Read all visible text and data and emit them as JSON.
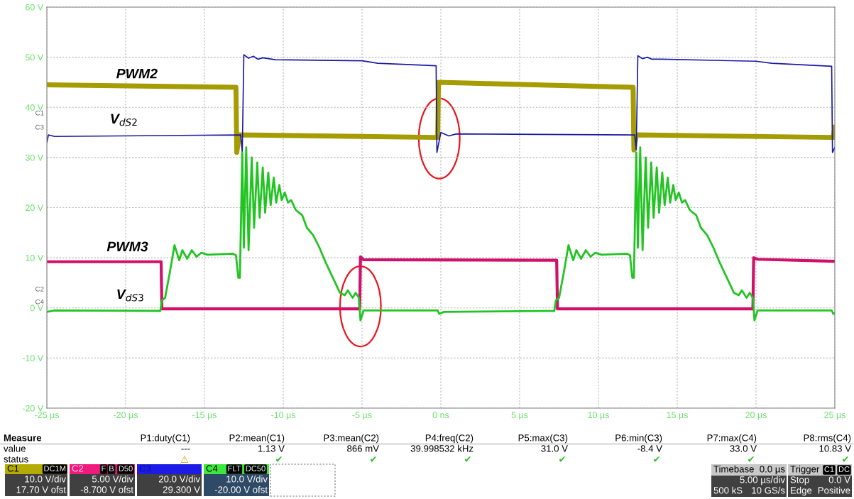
{
  "chart_data": {
    "type": "line",
    "xlim": [
      -25,
      25
    ],
    "xticks": [
      {
        "value": -25,
        "label": "-25 µs"
      },
      {
        "value": -20,
        "label": "-20 µs"
      },
      {
        "value": -15,
        "label": "-15 µs"
      },
      {
        "value": -10,
        "label": "-10 µs"
      },
      {
        "value": -5,
        "label": "-5 µs"
      },
      {
        "value": 0,
        "label": "0 ns"
      },
      {
        "value": 5,
        "label": "5 µs"
      },
      {
        "value": 10,
        "label": "10 µs"
      },
      {
        "value": 15,
        "label": "15 µs"
      },
      {
        "value": 20,
        "label": "20 µs"
      },
      {
        "value": 25,
        "label": "25 µs"
      }
    ],
    "ylim": [
      -20,
      60
    ],
    "yticks": [
      {
        "value": -20,
        "label": "-20 V"
      },
      {
        "value": -10,
        "label": "-10 V"
      },
      {
        "value": 0,
        "label": "0 V"
      },
      {
        "value": 10,
        "label": "10 V"
      },
      {
        "value": 20,
        "label": "20 V"
      },
      {
        "value": 30,
        "label": "30 V"
      },
      {
        "value": 40,
        "label": "40 V"
      },
      {
        "value": 50,
        "label": "50 V"
      },
      {
        "value": 60,
        "label": "60 V"
      }
    ],
    "grid": true,
    "legend": false,
    "line_style": "solid",
    "marker": "none",
    "series": [
      {
        "name": "PWM2",
        "color": "#a49c00",
        "x": [
          -25,
          -13.0,
          -12.95,
          -12.8,
          -0.2,
          -0.15,
          12.2,
          12.25,
          12.4,
          24.9,
          25
        ],
        "values": [
          44.5,
          44,
          31,
          34.5,
          34,
          45,
          44,
          31.5,
          34.5,
          34,
          36
        ]
      },
      {
        "name": "V$_{dS2}$",
        "color": "#1a1aa0",
        "x": [
          -25,
          -24.9,
          -24.5,
          -12.7,
          -12.6,
          -12.5,
          -12.2,
          -11.9,
          -11.6,
          -11.3,
          -10.5,
          -5.0,
          -4.0,
          -0.3,
          -0.25,
          0.0,
          0.5,
          1,
          12.3,
          12.4,
          12.5,
          12.8,
          13.1,
          13.4,
          14,
          20,
          21,
          24.8,
          24.85,
          25
        ],
        "values": [
          33,
          34.5,
          34.2,
          34.5,
          31,
          50.5,
          49.8,
          50.2,
          49.6,
          49.9,
          49.5,
          49.3,
          48.8,
          48.3,
          31,
          35,
          34.3,
          34.7,
          34.5,
          31.5,
          50.3,
          49.7,
          50,
          49.6,
          49.6,
          49.2,
          48.8,
          48.2,
          31,
          32
        ]
      },
      {
        "name": "PWM3",
        "color": "#d0106a",
        "x": [
          -25,
          -17.75,
          -17.7,
          -5.15,
          -5.1,
          -4.9,
          7.35,
          7.4,
          19.8,
          19.85,
          20.1,
          25
        ],
        "values": [
          9.2,
          9.2,
          -0.2,
          -0.2,
          10.2,
          9.6,
          9.5,
          -0.2,
          -0.2,
          10,
          9.7,
          9.3
        ]
      },
      {
        "name": "V$_{dS3}$",
        "color": "#22c422",
        "x": [
          -25,
          -24.5,
          -17.8,
          -17.7,
          -17.5,
          -17.2,
          -16.9,
          -16.6,
          -16.4,
          -16.1,
          -15.8,
          -15.5,
          -15.2,
          -14.8,
          -13.2,
          -13.0,
          -12.85,
          -12.75,
          -12.6,
          -12.5,
          -12.35,
          -12.2,
          -12.0,
          -11.85,
          -11.65,
          -11.5,
          -11.3,
          -11.15,
          -10.95,
          -10.8,
          -10.6,
          -10.45,
          -10.25,
          -10.1,
          -9.9,
          -9.7,
          -9.5,
          -9.2,
          -8.8,
          -8.5,
          -8.1,
          -7.7,
          -7.3,
          -7.0,
          -6.7,
          -6.4,
          -6.1,
          -5.9,
          -5.6,
          -5.4,
          -5.2,
          -5.1,
          -4.9,
          -0.2,
          -0.1,
          0.2,
          7.2,
          7.3,
          7.5,
          7.8,
          8.1,
          8.4,
          8.6,
          8.9,
          9.2,
          9.5,
          9.8,
          10.2,
          11.8,
          12.0,
          12.15,
          12.25,
          12.4,
          12.5,
          12.65,
          12.8,
          13.0,
          13.15,
          13.35,
          13.5,
          13.7,
          13.85,
          14.05,
          14.2,
          14.4,
          14.55,
          14.75,
          14.9,
          15.1,
          15.3,
          15.5,
          15.8,
          16.2,
          16.5,
          16.9,
          17.3,
          17.7,
          18.0,
          18.3,
          18.6,
          18.9,
          19.1,
          19.4,
          19.6,
          19.8,
          19.9,
          20.1,
          24.8,
          24.9,
          25
        ],
        "values": [
          -0.8,
          -0.5,
          -0.6,
          1.5,
          2,
          7,
          12.5,
          9.5,
          11.5,
          9.8,
          11.5,
          10.2,
          11,
          10.6,
          10.8,
          10.5,
          6,
          6,
          31,
          12,
          32,
          11.5,
          30,
          16,
          29,
          18,
          28,
          19,
          27,
          20.5,
          26,
          21,
          24.5,
          21.5,
          23,
          21,
          21.5,
          19.5,
          18.5,
          16,
          14.5,
          12,
          9,
          7,
          5,
          3,
          2.5,
          3.5,
          2,
          3,
          2,
          -2.5,
          -0.5,
          -0.5,
          -1.2,
          -0.8,
          -0.6,
          1.5,
          2,
          7,
          12.5,
          9.5,
          11.5,
          9.8,
          11.5,
          10.2,
          11,
          10.6,
          10.8,
          10.5,
          6,
          6,
          31,
          12,
          32,
          11.5,
          30,
          16,
          29,
          18,
          28,
          19,
          27,
          20.5,
          26,
          21,
          24.5,
          21.5,
          23,
          21,
          21.5,
          19.5,
          18.5,
          16,
          14.5,
          12,
          9,
          7,
          5,
          3,
          2.5,
          3.5,
          2,
          3,
          2,
          -2.5,
          -0.5,
          -0.5,
          -1.2,
          -1
        ]
      }
    ],
    "annotations": [
      "Measure",
      "P1:duty(C1)",
      "P2:mean(C1)",
      "P3:mean(C2)",
      "P4:freq(C2)",
      "P5:max(C3)",
      "P6:min(C3)",
      "P7:max(C4)",
      "P8:rms(C4)",
      "value",
      "---",
      "1.13 V",
      "866 mV",
      "39.998532 kHz",
      "31.0 V",
      "-8.4 V",
      "33.0 V",
      "10.83 V",
      "status",
      "⚠",
      "✔",
      "✔",
      "✔",
      "✔",
      "✔",
      "✔",
      "✔",
      "C1",
      "DC1M",
      "10.0 V/div",
      "17.70 V ofst",
      "C2",
      "F",
      "B",
      "D50",
      "5.00 V/div",
      "-8.700 V ofst",
      "C3",
      "20.0 V/div",
      "29.300 V",
      "C4",
      "FLT",
      "DC50",
      "10.0 V/div",
      "-20.00 V ofst",
      "Timebase",
      "0.0 µs",
      "5.00 µs/div",
      "500 kS",
      "10 GS/s",
      "Trigger",
      "C1",
      "DC",
      "Stop",
      "0.0 V",
      "Edge",
      "Positive",
      "C1",
      "C3",
      "C2",
      "C4"
    ]
  }
}
